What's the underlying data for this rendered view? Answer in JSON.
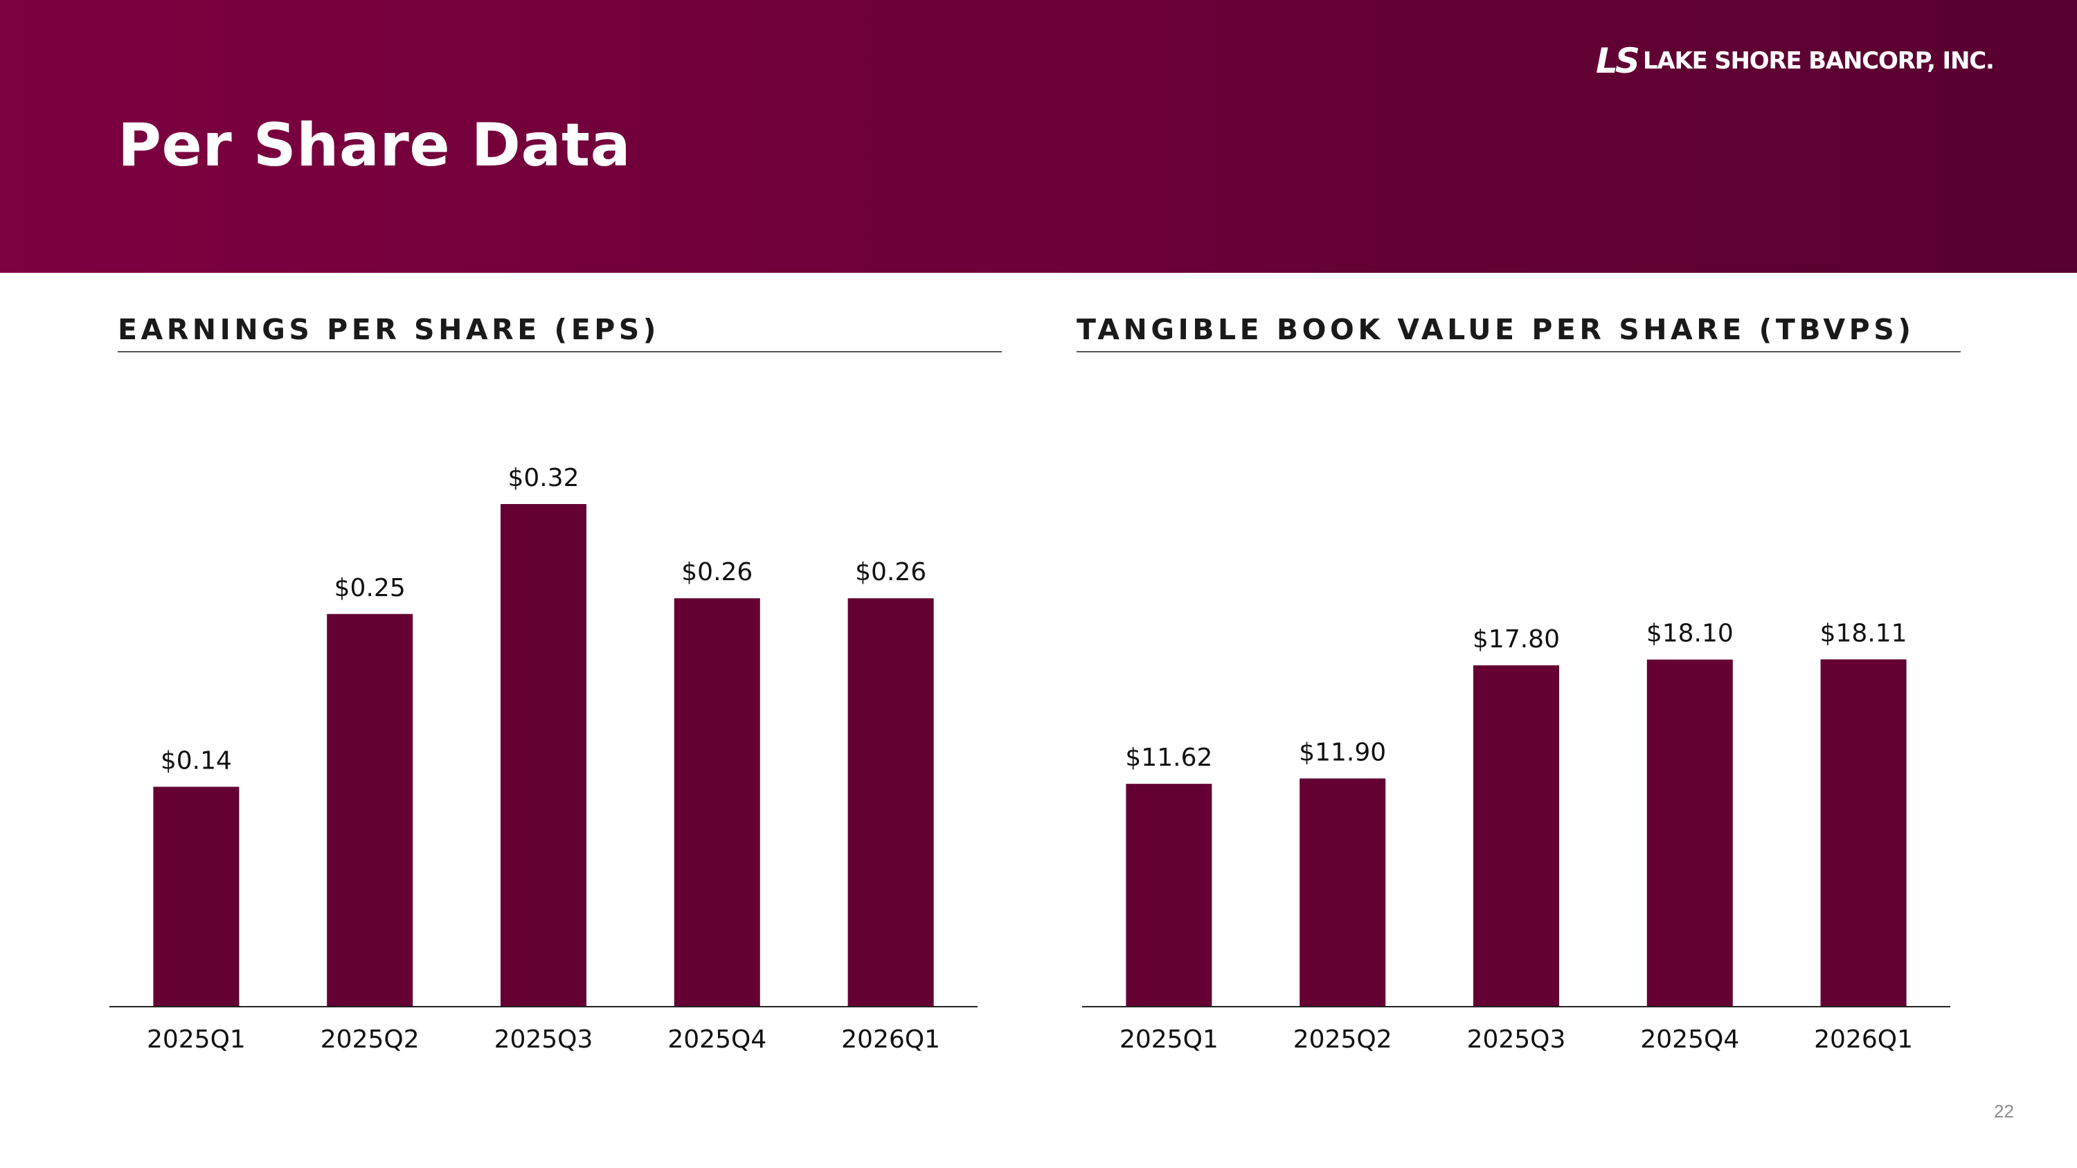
{
  "header": {
    "title": "Per Share Data",
    "logo_mark": "LS",
    "logo_text": "LAKE SHORE BANCORP, INC."
  },
  "colors": {
    "header_background": "#7d0040",
    "bar": "#640032",
    "axis": "#222222"
  },
  "chart_data": [
    {
      "type": "bar",
      "title": "EARNINGS PER SHARE (EPS)",
      "categories": [
        "2025Q1",
        "2025Q2",
        "2025Q3",
        "2025Q4",
        "2026Q1"
      ],
      "values": [
        0.14,
        0.25,
        0.32,
        0.26,
        0.26
      ],
      "data_labels": [
        "$0.14",
        "$0.25",
        "$0.32",
        "$0.26",
        "$0.26"
      ],
      "xlabel": "",
      "ylabel": "",
      "ylim": [
        0,
        0.32
      ],
      "grid": false,
      "legend": "none"
    },
    {
      "type": "bar",
      "title": "TANGIBLE BOOK VALUE PER SHARE (TBVPS)",
      "categories": [
        "2025Q1",
        "2025Q2",
        "2025Q3",
        "2025Q4",
        "2026Q1"
      ],
      "values": [
        11.62,
        11.9,
        17.8,
        18.1,
        18.11
      ],
      "data_labels": [
        "$11.62",
        "$11.90",
        "$17.80",
        "$18.10",
        "$18.11"
      ],
      "xlabel": "",
      "ylabel": "",
      "ylim": [
        0,
        26.21
      ],
      "grid": false,
      "legend": "none"
    }
  ],
  "footer": {
    "page_number": "22"
  }
}
